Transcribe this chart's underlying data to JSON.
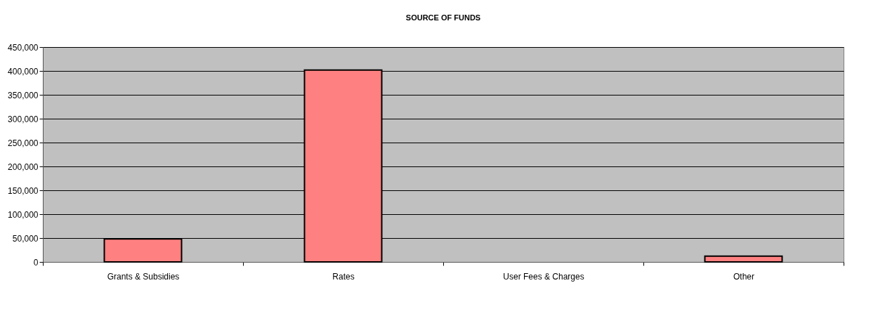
{
  "chart_data": {
    "type": "bar",
    "title": "SOURCE OF FUNDS",
    "categories": [
      "Grants & Subsidies",
      "Rates",
      "User Fees & Charges",
      "Other"
    ],
    "values": [
      48000,
      402000,
      null,
      12000
    ],
    "color": "#ff8080",
    "ylim": [
      0,
      450000
    ],
    "yticks": [
      0,
      {
        "value": 50000,
        "label": "50,000"
      },
      {
        "value": 100000,
        "label": "100,000"
      },
      {
        "value": 150000,
        "label": "150,000"
      },
      {
        "value": 200000,
        "label": "200,000"
      },
      {
        "value": 250000,
        "label": "250,000"
      },
      {
        "value": 300000,
        "label": "300,000"
      },
      {
        "value": 350000,
        "label": "350,000"
      },
      {
        "value": 400000,
        "label": "400,000"
      },
      {
        "value": 450000,
        "label": "450,000"
      }
    ],
    "grid": "y"
  }
}
